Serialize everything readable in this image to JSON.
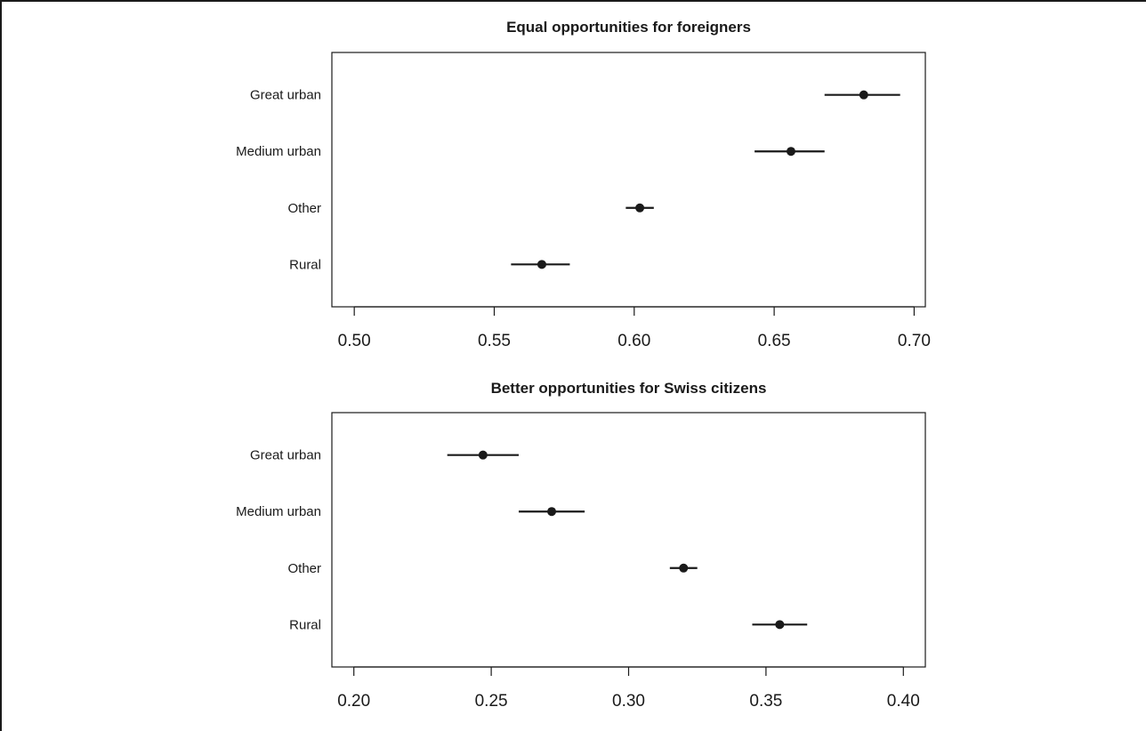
{
  "chart_data": [
    {
      "type": "scatter",
      "title": "Equal opportunities for foreigners",
      "categories": [
        "Great urban",
        "Medium urban",
        "Other",
        "Rural"
      ],
      "estimates": [
        0.682,
        0.656,
        0.602,
        0.567
      ],
      "ci_low": [
        0.668,
        0.643,
        0.597,
        0.556
      ],
      "ci_high": [
        0.695,
        0.668,
        0.607,
        0.577
      ],
      "xlim": [
        0.492,
        0.704
      ],
      "xticks": [
        0.5,
        0.55,
        0.6,
        0.65,
        0.7
      ],
      "xtick_labels": [
        "0.50",
        "0.55",
        "0.60",
        "0.65",
        "0.70"
      ],
      "xlabel": "",
      "ylabel": "",
      "grid": false
    },
    {
      "type": "scatter",
      "title": "Better opportunities for Swiss citizens",
      "categories": [
        "Great urban",
        "Medium urban",
        "Other",
        "Rural"
      ],
      "estimates": [
        0.247,
        0.272,
        0.32,
        0.355
      ],
      "ci_low": [
        0.234,
        0.26,
        0.315,
        0.345
      ],
      "ci_high": [
        0.26,
        0.284,
        0.325,
        0.365
      ],
      "xlim": [
        0.192,
        0.408
      ],
      "xticks": [
        0.2,
        0.25,
        0.3,
        0.35,
        0.4
      ],
      "xtick_labels": [
        "0.20",
        "0.25",
        "0.30",
        "0.35",
        "0.40"
      ],
      "xlabel": "",
      "ylabel": "",
      "grid": false
    }
  ]
}
